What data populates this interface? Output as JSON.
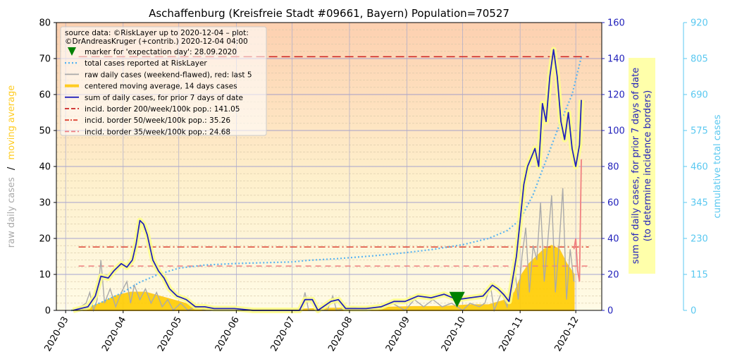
{
  "chart_data": {
    "type": "line",
    "title": "Aschaffenburg (Kreisfreie Stadt #09661, Bayern) Population=70527",
    "left_axis": {
      "label_part1": "raw daily cases",
      "label_sep": "/",
      "label_part2": "moving average",
      "ylim": [
        0,
        80
      ],
      "ticks": [
        "0",
        "10",
        "20",
        "30",
        "40",
        "50",
        "60",
        "70",
        "80"
      ]
    },
    "right_axis_1": {
      "label_line1": "sum of daily cases, for prior 7 days of date",
      "label_line2": "(to determine incidence borders)",
      "ylim": [
        0,
        160
      ],
      "ticks": [
        "0",
        "20",
        "40",
        "60",
        "80",
        "100",
        "120",
        "140",
        "160"
      ]
    },
    "right_axis_2": {
      "label": "cumulative total cases",
      "ylim": [
        0,
        920
      ],
      "ticks": [
        "0",
        "115",
        "230",
        "345",
        "460",
        "575",
        "690",
        "805",
        "920"
      ]
    },
    "x_axis": {
      "start": "2020-02-25",
      "end": "2020-12-15",
      "tick_labels": [
        "2020-03",
        "2020-04",
        "2020-05",
        "2020-06",
        "2020-07",
        "2020-08",
        "2020-09",
        "2020-10",
        "2020-11",
        "2020-12"
      ],
      "tick_dates": [
        "2020-03-01",
        "2020-04-01",
        "2020-05-01",
        "2020-06-01",
        "2020-07-01",
        "2020-08-01",
        "2020-09-01",
        "2020-10-01",
        "2020-11-01",
        "2020-12-01"
      ]
    },
    "legend": {
      "placement": "top-left",
      "source_line1": "source data: ©RiskLayer up to 2020-12-04 – plot:",
      "source_line2": "©DrAndreasKruger (+contrib.) 2020-12-04 04:00",
      "entries": [
        {
          "label": "marker for 'expectation day': 28.09.2020",
          "kind": "marker",
          "color": "#008000"
        },
        {
          "label": "total cases reported at RiskLayer",
          "kind": "dotted",
          "color": "#5ab4f0"
        },
        {
          "label": "raw daily cases (weekend-flawed), red: last 5",
          "kind": "line",
          "color": "#aaaaaa"
        },
        {
          "label": "centered moving average, 14 days cases",
          "kind": "thick",
          "color": "#ffcc22"
        },
        {
          "label": "sum of daily cases, for prior 7 days of date",
          "kind": "line",
          "color": "#2222bb"
        },
        {
          "label": "incid. border 200/week/100k pop.: 141.05",
          "kind": "dashed",
          "color": "#cc2222"
        },
        {
          "label": "incid. border 50/week/100k pop.: 35.26",
          "kind": "dashdot",
          "color": "#dd4433"
        },
        {
          "label": "incid. border 35/week/100k pop.: 24.68",
          "kind": "dashed",
          "color": "#f08080"
        }
      ]
    },
    "expectation_day": {
      "date": "2020-09-28",
      "value": 3
    },
    "incidence_borders": [
      {
        "name": "200/week",
        "value_sum7": 141.05,
        "color": "#cc2222"
      },
      {
        "name": "50/week",
        "value_sum7": 35.26,
        "color": "#dd4433"
      },
      {
        "name": "35/week",
        "value_sum7": 24.68,
        "color": "#f08080"
      }
    ],
    "series": [
      {
        "name": "centered moving average, 14 days cases",
        "axis": "left",
        "points": [
          [
            "2020-03-04",
            0
          ],
          [
            "2020-03-12",
            0.5
          ],
          [
            "2020-03-20",
            2
          ],
          [
            "2020-03-28",
            4
          ],
          [
            "2020-04-05",
            5
          ],
          [
            "2020-04-13",
            5
          ],
          [
            "2020-04-20",
            4
          ],
          [
            "2020-04-27",
            3
          ],
          [
            "2020-05-04",
            2
          ],
          [
            "2020-05-12",
            1
          ],
          [
            "2020-05-20",
            0.5
          ],
          [
            "2020-06-01",
            0.3
          ],
          [
            "2020-06-20",
            0.2
          ],
          [
            "2020-07-05",
            0.3
          ],
          [
            "2020-07-20",
            0.5
          ],
          [
            "2020-08-05",
            0.6
          ],
          [
            "2020-08-20",
            0.8
          ],
          [
            "2020-09-05",
            1
          ],
          [
            "2020-09-20",
            1
          ],
          [
            "2020-10-05",
            1.5
          ],
          [
            "2020-10-15",
            1.5
          ],
          [
            "2020-10-25",
            3
          ],
          [
            "2020-10-29",
            5
          ],
          [
            "2020-11-02",
            10
          ],
          [
            "2020-11-06",
            13
          ],
          [
            "2020-11-10",
            15
          ],
          [
            "2020-11-14",
            17
          ],
          [
            "2020-11-18",
            18
          ],
          [
            "2020-11-22",
            17
          ],
          [
            "2020-11-26",
            13
          ],
          [
            "2020-11-30",
            10
          ]
        ]
      },
      {
        "name": "raw daily cases (weekend-flawed), red: last 5",
        "axis": "left",
        "points": [
          [
            "2020-03-05",
            0
          ],
          [
            "2020-03-09",
            1
          ],
          [
            "2020-03-12",
            2
          ],
          [
            "2020-03-14",
            5
          ],
          [
            "2020-03-16",
            0
          ],
          [
            "2020-03-18",
            3
          ],
          [
            "2020-03-20",
            14
          ],
          [
            "2020-03-22",
            2
          ],
          [
            "2020-03-25",
            6
          ],
          [
            "2020-03-28",
            1
          ],
          [
            "2020-03-31",
            5
          ],
          [
            "2020-04-03",
            8
          ],
          [
            "2020-04-05",
            2
          ],
          [
            "2020-04-07",
            7
          ],
          [
            "2020-04-10",
            3
          ],
          [
            "2020-04-13",
            6
          ],
          [
            "2020-04-16",
            2
          ],
          [
            "2020-04-19",
            5
          ],
          [
            "2020-04-22",
            1
          ],
          [
            "2020-04-25",
            3
          ],
          [
            "2020-04-28",
            0
          ],
          [
            "2020-05-02",
            2
          ],
          [
            "2020-05-06",
            0
          ],
          [
            "2020-05-10",
            1
          ],
          [
            "2020-05-15",
            0
          ],
          [
            "2020-06-01",
            0
          ],
          [
            "2020-07-06",
            0
          ],
          [
            "2020-07-08",
            5
          ],
          [
            "2020-07-10",
            0
          ],
          [
            "2020-07-20",
            0
          ],
          [
            "2020-07-23",
            4
          ],
          [
            "2020-07-25",
            0
          ],
          [
            "2020-08-03",
            1
          ],
          [
            "2020-08-10",
            0
          ],
          [
            "2020-08-17",
            1
          ],
          [
            "2020-08-24",
            2
          ],
          [
            "2020-08-31",
            0
          ],
          [
            "2020-09-05",
            3
          ],
          [
            "2020-09-10",
            1
          ],
          [
            "2020-09-15",
            3
          ],
          [
            "2020-09-20",
            1
          ],
          [
            "2020-09-25",
            2
          ],
          [
            "2020-10-01",
            0
          ],
          [
            "2020-10-05",
            2
          ],
          [
            "2020-10-10",
            1
          ],
          [
            "2020-10-13",
            2
          ],
          [
            "2020-10-16",
            7
          ],
          [
            "2020-10-18",
            0
          ],
          [
            "2020-10-22",
            5
          ],
          [
            "2020-10-25",
            1
          ],
          [
            "2020-10-27",
            8
          ],
          [
            "2020-10-29",
            12
          ],
          [
            "2020-10-31",
            3
          ],
          [
            "2020-11-02",
            15
          ],
          [
            "2020-11-04",
            23
          ],
          [
            "2020-11-06",
            5
          ],
          [
            "2020-11-08",
            18
          ],
          [
            "2020-11-10",
            14
          ],
          [
            "2020-11-12",
            30
          ],
          [
            "2020-11-14",
            8
          ],
          [
            "2020-11-16",
            20
          ],
          [
            "2020-11-18",
            32
          ],
          [
            "2020-11-20",
            5
          ],
          [
            "2020-11-22",
            18
          ],
          [
            "2020-11-24",
            34
          ],
          [
            "2020-11-26",
            3
          ],
          [
            "2020-11-28",
            17
          ],
          [
            "2020-11-30",
            8
          ]
        ]
      },
      {
        "name": "raw daily cases, last 5",
        "axis": "left",
        "color": "#f08080",
        "points": [
          [
            "2020-11-30",
            17
          ],
          [
            "2020-12-01",
            20
          ],
          [
            "2020-12-02",
            11
          ],
          [
            "2020-12-03",
            8
          ],
          [
            "2020-12-04",
            42
          ]
        ]
      },
      {
        "name": "sum of daily cases, for prior 7 days of date",
        "axis": "right1",
        "points": [
          [
            "2020-03-05",
            0
          ],
          [
            "2020-03-09",
            1
          ],
          [
            "2020-03-13",
            2
          ],
          [
            "2020-03-17",
            8
          ],
          [
            "2020-03-20",
            19
          ],
          [
            "2020-03-24",
            18
          ],
          [
            "2020-03-27",
            22
          ],
          [
            "2020-03-31",
            26
          ],
          [
            "2020-04-03",
            24
          ],
          [
            "2020-04-06",
            28
          ],
          [
            "2020-04-08",
            37
          ],
          [
            "2020-04-10",
            50
          ],
          [
            "2020-04-12",
            48
          ],
          [
            "2020-04-14",
            42
          ],
          [
            "2020-04-17",
            28
          ],
          [
            "2020-04-20",
            22
          ],
          [
            "2020-04-23",
            18
          ],
          [
            "2020-04-26",
            12
          ],
          [
            "2020-04-30",
            8
          ],
          [
            "2020-05-05",
            6
          ],
          [
            "2020-05-10",
            2
          ],
          [
            "2020-05-15",
            2
          ],
          [
            "2020-05-20",
            1
          ],
          [
            "2020-05-31",
            1
          ],
          [
            "2020-06-10",
            0
          ],
          [
            "2020-07-05",
            0
          ],
          [
            "2020-07-08",
            6
          ],
          [
            "2020-07-12",
            6
          ],
          [
            "2020-07-15",
            0
          ],
          [
            "2020-07-22",
            5
          ],
          [
            "2020-07-26",
            6
          ],
          [
            "2020-07-30",
            1
          ],
          [
            "2020-08-10",
            1
          ],
          [
            "2020-08-18",
            2
          ],
          [
            "2020-08-25",
            5
          ],
          [
            "2020-08-31",
            5
          ],
          [
            "2020-09-07",
            8
          ],
          [
            "2020-09-14",
            7
          ],
          [
            "2020-09-21",
            9
          ],
          [
            "2020-09-28",
            6
          ],
          [
            "2020-10-05",
            7
          ],
          [
            "2020-10-12",
            8
          ],
          [
            "2020-10-17",
            14
          ],
          [
            "2020-10-20",
            12
          ],
          [
            "2020-10-23",
            9
          ],
          [
            "2020-10-26",
            5
          ],
          [
            "2020-10-30",
            30
          ],
          [
            "2020-11-01",
            50
          ],
          [
            "2020-11-03",
            70
          ],
          [
            "2020-11-05",
            80
          ],
          [
            "2020-11-07",
            85
          ],
          [
            "2020-11-09",
            90
          ],
          [
            "2020-11-11",
            80
          ],
          [
            "2020-11-13",
            115
          ],
          [
            "2020-11-15",
            105
          ],
          [
            "2020-11-17",
            130
          ],
          [
            "2020-11-19",
            145
          ],
          [
            "2020-11-21",
            130
          ],
          [
            "2020-11-23",
            105
          ],
          [
            "2020-11-25",
            95
          ],
          [
            "2020-11-27",
            110
          ],
          [
            "2020-11-29",
            90
          ],
          [
            "2020-12-01",
            80
          ],
          [
            "2020-12-03",
            92
          ],
          [
            "2020-12-04",
            117
          ]
        ]
      },
      {
        "name": "total cases reported at RiskLayer",
        "axis": "right2",
        "points": [
          [
            "2020-03-04",
            0
          ],
          [
            "2020-03-10",
            3
          ],
          [
            "2020-03-20",
            25
          ],
          [
            "2020-03-31",
            55
          ],
          [
            "2020-04-10",
            90
          ],
          [
            "2020-04-20",
            115
          ],
          [
            "2020-05-01",
            135
          ],
          [
            "2020-05-15",
            145
          ],
          [
            "2020-06-01",
            150
          ],
          [
            "2020-07-01",
            155
          ],
          [
            "2020-07-10",
            160
          ],
          [
            "2020-07-25",
            165
          ],
          [
            "2020-08-15",
            175
          ],
          [
            "2020-09-01",
            185
          ],
          [
            "2020-09-15",
            195
          ],
          [
            "2020-10-01",
            210
          ],
          [
            "2020-10-15",
            230
          ],
          [
            "2020-10-25",
            255
          ],
          [
            "2020-11-01",
            290
          ],
          [
            "2020-11-08",
            370
          ],
          [
            "2020-11-15",
            480
          ],
          [
            "2020-11-22",
            590
          ],
          [
            "2020-11-29",
            690
          ],
          [
            "2020-12-04",
            810
          ]
        ]
      }
    ]
  }
}
